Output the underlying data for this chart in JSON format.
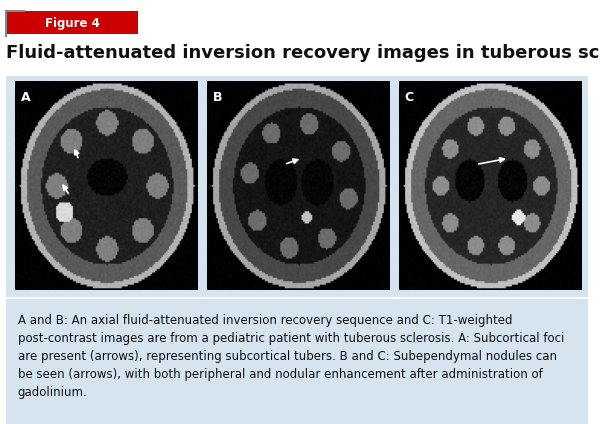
{
  "figure_label": "Figure 4",
  "figure_label_color": "#cc0000",
  "title": "Fluid-attenuated inversion recovery images in tuberous sclerosis",
  "title_fontsize": 13,
  "title_color": "#111111",
  "background_color": "#ffffff",
  "panel_bg_color": "#d6e4f0",
  "image_panel_bg": "#000000",
  "caption": "A and B: An axial fluid-attenuated inversion recovery sequence and C: T1-weighted\npost-contrast images are from a pediatric patient with tuberous sclerosis. A: Subcortical foci\nare present (arrows), representing subcortical tubers. B and C: Subependymal nodules can\nbe seen (arrows), with both peripheral and nodular enhancement after administration of\ngadolinium.",
  "caption_fontsize": 8.5,
  "panel_labels": [
    "A",
    "B",
    "C"
  ],
  "panel_label_color": "#ffffff",
  "fig_width": 6.0,
  "fig_height": 4.24,
  "dpi": 100
}
